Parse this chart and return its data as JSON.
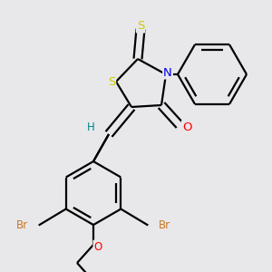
{
  "bg_color": "#e8e8ea",
  "atom_colors": {
    "S": "#cccc00",
    "N": "#0000ee",
    "O": "#ff0000",
    "Br": "#cc7722",
    "H": "#008888",
    "C": "#000000"
  },
  "bond_color": "#000000",
  "bond_width": 1.6,
  "dbo": 0.06
}
